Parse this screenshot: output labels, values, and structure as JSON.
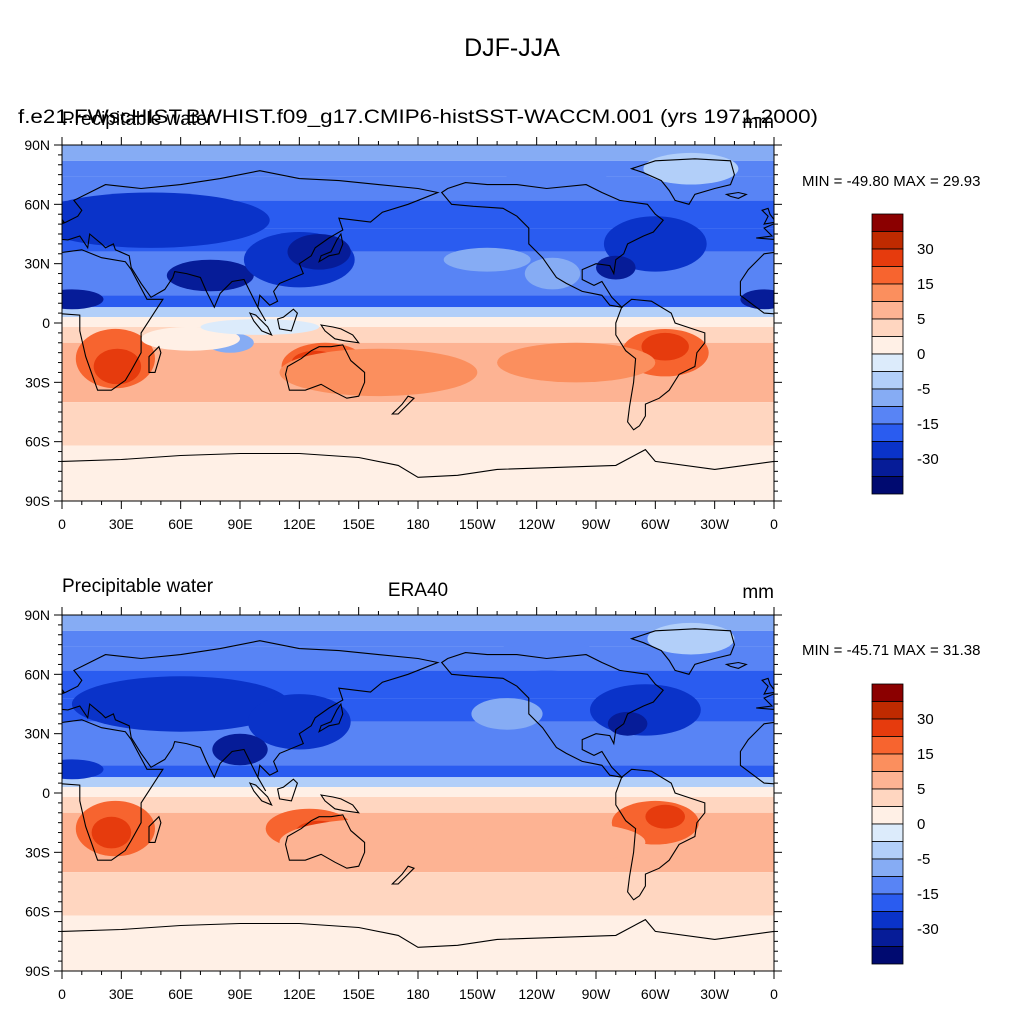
{
  "figure": {
    "title": "DJF-JJA"
  },
  "panels": [
    {
      "left_title": "Precipitable water",
      "center_title": "f.e21.FWscHIST.BWHIST.f09_g17.CMIP6-histSST-WACCM.001 (yrs 1971-2000)",
      "units": "mm",
      "stats": "MIN = -49.80 MAX =  29.93",
      "min": -49.8,
      "max": 29.93
    },
    {
      "left_title": "Precipitable water",
      "center_title": "ERA40",
      "units": "mm",
      "stats": "MIN = -45.71 MAX =  31.38",
      "min": -45.71,
      "max": 31.38
    }
  ],
  "axes": {
    "lat_labels": [
      "90N",
      "60N",
      "30N",
      "0",
      "30S",
      "60S",
      "90S"
    ],
    "lon_labels": [
      "0",
      "30E",
      "60E",
      "90E",
      "120E",
      "150E",
      "180",
      "150W",
      "120W",
      "90W",
      "60W",
      "30W",
      "0"
    ]
  },
  "colorbar": {
    "labels": [
      "30",
      "15",
      "5",
      "0",
      "-5",
      "-15",
      "-30"
    ],
    "colors": [
      "#8b0000",
      "#bf2a00",
      "#e63b0d",
      "#f7642f",
      "#fb8f5e",
      "#fdb393",
      "#ffd6c0",
      "#fff0e6",
      "#dcebfb",
      "#b2cff9",
      "#86acf4",
      "#5884f5",
      "#2a5cf0",
      "#0a33c9",
      "#061c98",
      "#000a70"
    ]
  },
  "chart_data": [
    {
      "type": "heatmap",
      "title": "Precipitable water",
      "subtitle": "f.e21.FWscHIST.BWHIST.f09_g17.CMIP6-histSST-WACCM.001 (yrs 1971-2000)",
      "units": "mm",
      "x_range": [
        0,
        360
      ],
      "y_range": [
        -90,
        90
      ],
      "min": -49.8,
      "max": 29.93,
      "levels": [
        -40,
        -30,
        -25,
        -20,
        -15,
        -10,
        -5,
        -2,
        0,
        2,
        5,
        10,
        15,
        20,
        25,
        30,
        40
      ]
    },
    {
      "type": "heatmap",
      "title": "Precipitable water",
      "subtitle": "ERA40",
      "units": "mm",
      "x_range": [
        0,
        360
      ],
      "y_range": [
        -90,
        90
      ],
      "min": -45.71,
      "max": 31.38,
      "levels": [
        -40,
        -30,
        -25,
        -20,
        -15,
        -10,
        -5,
        -2,
        0,
        2,
        5,
        10,
        15,
        20,
        25,
        30,
        40
      ]
    }
  ]
}
